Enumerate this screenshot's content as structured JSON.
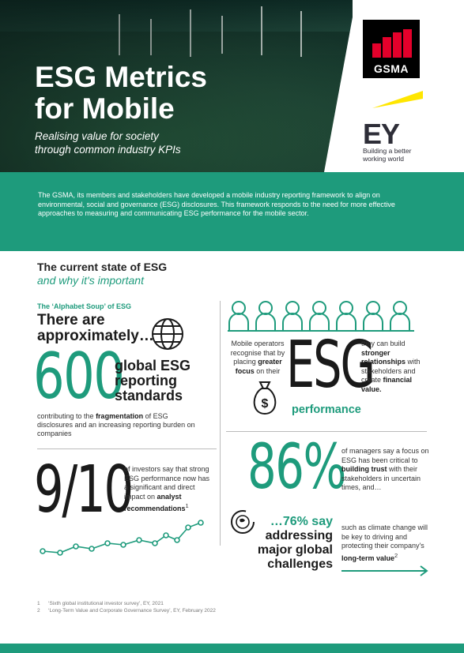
{
  "hero": {
    "title_line1": "ESG Metrics",
    "title_line2": "for Mobile",
    "subtitle_line1": "Realising value for society",
    "subtitle_line2": "through common industry KPIs"
  },
  "logos": {
    "gsma": "GSMA",
    "ey": "EY",
    "ey_tagline_line1": "Building a better",
    "ey_tagline_line2": "working world"
  },
  "intro": "The GSMA, its members and stakeholders have developed a mobile industry reporting framework to align on environmental, social and governance (ESG) disclosures. This framework responds to the need for more effective approaches to measuring and communicating ESG performance for the mobile sector.",
  "section": {
    "title": "The current state of ESG",
    "subtitle": "and why it's important"
  },
  "alphabet": {
    "label": "The ‘Alphabet Soup’ of ESG",
    "approx_line1": "There are",
    "approx_line2": "approximately…",
    "number": "600",
    "standards_line1": "global ESG",
    "standards_line2": "reporting",
    "standards_line3": "standards",
    "contrib_pre": "contributing to the ",
    "contrib_bold": "fragmentation",
    "contrib_post": " of ESG disclosures and an increasing reporting burden on companies"
  },
  "investors": {
    "number": "9/10",
    "text_pre": "of investors say that strong ESG performance now has a significant and direct impact on ",
    "text_bold": "analyst recommendations",
    "text_sup": "1"
  },
  "operators": {
    "left_pre": "Mobile operators recognise that by placing ",
    "left_bold": "greater focus",
    "left_post": " on their",
    "big": "ESG",
    "right_pre": "they can build ",
    "right_bold1": "stronger relationships",
    "right_mid": " with stakeholders and create ",
    "right_bold2": "financial value.",
    "performance": "performance"
  },
  "managers": {
    "number": "86%",
    "text_pre": "of managers say a focus on ESG has been critical to ",
    "text_bold": "building trust",
    "text_post": " with their stakeholders in uncertain times, and…",
    "say_green": "…76% say",
    "say_line2": "addressing",
    "say_line3": "major global",
    "say_line4": "challenges",
    "climate_pre": "such as climate change will be key to driving and protecting their company's ",
    "climate_bold": "long-term value",
    "climate_sup": "2"
  },
  "footnotes": [
    {
      "n": "1",
      "text": "‘Sixth global institutional investor survey’, EY, 2021"
    },
    {
      "n": "2",
      "text": "‘Long-Term Value and Corporate Governance Survey’, EY, February 2022"
    }
  ],
  "colors": {
    "accent": "#1e9b7c",
    "gsma_red": "#e4002b",
    "ey_yellow": "#ffe600"
  }
}
